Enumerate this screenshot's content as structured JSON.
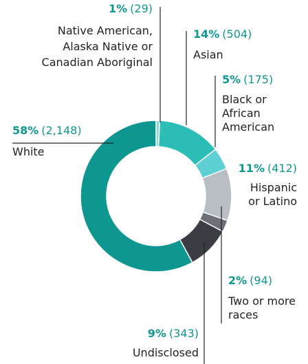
{
  "chart_data": {
    "type": "donut",
    "categories": [
      [
        "Native American,",
        "Alaska Native or",
        "Canadian Aboriginal"
      ],
      [
        "Asian"
      ],
      [
        "Black or",
        "African",
        "American"
      ],
      [
        "Hispanic",
        "or Latino"
      ],
      [
        "Two or more",
        "races"
      ],
      [
        "Undisclosed"
      ],
      [
        "White"
      ]
    ],
    "values": [
      29,
      504,
      175,
      412,
      94,
      343,
      2148
    ],
    "value_labels": [
      "(29)",
      "(504)",
      "(175)",
      "(412)",
      "(94)",
      "(343)",
      "(2,148)"
    ],
    "percents": [
      1,
      14,
      5,
      11,
      2,
      9,
      58
    ],
    "percent_labels": [
      "1%",
      "14%",
      "5%",
      "11%",
      "2%",
      "9%",
      "58%"
    ],
    "colors": [
      "#8fd9d2",
      "#2cbdb6",
      "#5ecfd3",
      "#b9bdc4",
      "#6d7077",
      "#3a3d42",
      "#0e9790"
    ]
  }
}
